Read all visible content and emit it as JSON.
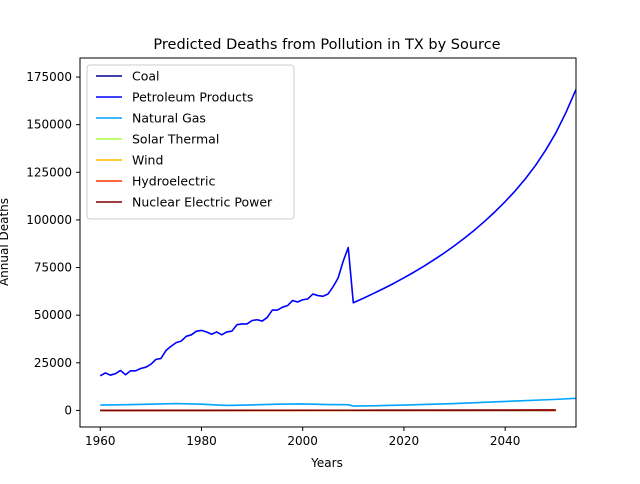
{
  "chart_data": {
    "type": "line",
    "title": "Predicted Deaths from Pollution in TX by Source",
    "xlabel": "Years",
    "ylabel": "Annual Deaths",
    "xlim": [
      1956,
      2054
    ],
    "ylim": [
      -8700,
      185000
    ],
    "grid": false,
    "legend_position": "top-left",
    "x_ticks": [
      1960,
      1980,
      2000,
      2020,
      2040
    ],
    "x_tick_labels": [
      "1960",
      "1980",
      "2000",
      "2020",
      "2040"
    ],
    "y_ticks": [
      0,
      25000,
      50000,
      75000,
      100000,
      125000,
      150000,
      175000
    ],
    "y_tick_labels": [
      "0",
      "25000",
      "50000",
      "75000",
      "100000",
      "125000",
      "150000",
      "175000"
    ],
    "series": [
      {
        "name": "Coal",
        "color": "#00008f",
        "points": [
          [
            1960,
            0
          ],
          [
            1980,
            0
          ],
          [
            2009,
            100
          ],
          [
            2010,
            0
          ],
          [
            2050,
            0
          ]
        ]
      },
      {
        "name": "Petroleum Products",
        "color": "#0000ff",
        "points": [
          [
            1960,
            18200
          ],
          [
            1961,
            19700
          ],
          [
            1962,
            18500
          ],
          [
            1963,
            19300
          ],
          [
            1964,
            21000
          ],
          [
            1965,
            18700
          ],
          [
            1966,
            20800
          ],
          [
            1967,
            20800
          ],
          [
            1968,
            22000
          ],
          [
            1969,
            22700
          ],
          [
            1970,
            24200
          ],
          [
            1971,
            26800
          ],
          [
            1972,
            27300
          ],
          [
            1973,
            31500
          ],
          [
            1974,
            33700
          ],
          [
            1975,
            35600
          ],
          [
            1976,
            36400
          ],
          [
            1977,
            38900
          ],
          [
            1978,
            39700
          ],
          [
            1979,
            41600
          ],
          [
            1980,
            42000
          ],
          [
            1981,
            41200
          ],
          [
            1982,
            40000
          ],
          [
            1983,
            41200
          ],
          [
            1984,
            39700
          ],
          [
            1985,
            41200
          ],
          [
            1986,
            41600
          ],
          [
            1987,
            45000
          ],
          [
            1988,
            45400
          ],
          [
            1989,
            45400
          ],
          [
            1990,
            47200
          ],
          [
            1991,
            47600
          ],
          [
            1992,
            46900
          ],
          [
            1993,
            48800
          ],
          [
            1994,
            52700
          ],
          [
            1995,
            52700
          ],
          [
            1996,
            54200
          ],
          [
            1997,
            55000
          ],
          [
            1998,
            57700
          ],
          [
            1999,
            56900
          ],
          [
            2000,
            58100
          ],
          [
            2001,
            58500
          ],
          [
            2002,
            61100
          ],
          [
            2003,
            60300
          ],
          [
            2004,
            59900
          ],
          [
            2005,
            61100
          ],
          [
            2006,
            64900
          ],
          [
            2007,
            69500
          ],
          [
            2008,
            78300
          ],
          [
            2009,
            85500
          ],
          [
            2010,
            56500
          ],
          [
            2012,
            58900
          ],
          [
            2014,
            61400
          ],
          [
            2016,
            64000
          ],
          [
            2018,
            66700
          ],
          [
            2020,
            69600
          ],
          [
            2022,
            72600
          ],
          [
            2024,
            75800
          ],
          [
            2026,
            79200
          ],
          [
            2028,
            82700
          ],
          [
            2030,
            86500
          ],
          [
            2032,
            90500
          ],
          [
            2034,
            94800
          ],
          [
            2036,
            99400
          ],
          [
            2038,
            104300
          ],
          [
            2040,
            109600
          ],
          [
            2042,
            115300
          ],
          [
            2044,
            121600
          ],
          [
            2046,
            128600
          ],
          [
            2048,
            136600
          ],
          [
            2050,
            145600
          ],
          [
            2052,
            156300
          ],
          [
            2054,
            168500
          ],
          [
            2056,
            176500
          ]
        ]
      },
      {
        "name": "Natural Gas",
        "color": "#00a4ff",
        "points": [
          [
            1960,
            2800
          ],
          [
            1965,
            3000
          ],
          [
            1970,
            3300
          ],
          [
            1975,
            3600
          ],
          [
            1980,
            3300
          ],
          [
            1985,
            2600
          ],
          [
            1990,
            2900
          ],
          [
            1995,
            3300
          ],
          [
            2000,
            3400
          ],
          [
            2005,
            3100
          ],
          [
            2009,
            3000
          ],
          [
            2010,
            2300
          ],
          [
            2015,
            2500
          ],
          [
            2020,
            2800
          ],
          [
            2030,
            3600
          ],
          [
            2040,
            4700
          ],
          [
            2050,
            5800
          ],
          [
            2056,
            6600
          ]
        ]
      },
      {
        "name": "Solar Thermal",
        "color": "#b0ff46",
        "points": [
          [
            1960,
            0
          ],
          [
            2050,
            0
          ]
        ]
      },
      {
        "name": "Wind",
        "color": "#ffb900",
        "points": [
          [
            1960,
            0
          ],
          [
            2000,
            0
          ],
          [
            2010,
            50
          ],
          [
            2050,
            100
          ]
        ]
      },
      {
        "name": "Hydroelectric",
        "color": "#ff3000",
        "points": [
          [
            1960,
            80
          ],
          [
            2000,
            80
          ],
          [
            2050,
            80
          ]
        ]
      },
      {
        "name": "Nuclear Electric Power",
        "color": "#7f0000",
        "points": [
          [
            1960,
            0
          ],
          [
            1990,
            50
          ],
          [
            2010,
            100
          ],
          [
            2050,
            250
          ]
        ]
      }
    ]
  }
}
